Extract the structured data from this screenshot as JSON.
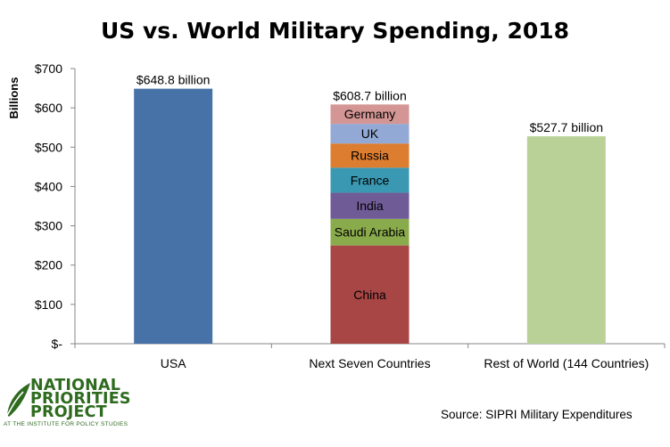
{
  "chart_data": {
    "type": "bar",
    "stacked": true,
    "title": "US vs. World Military Spending, 2018",
    "ylabel": "Billions",
    "ylim": [
      0,
      700
    ],
    "yticks": [
      0,
      100,
      200,
      300,
      400,
      500,
      600,
      700
    ],
    "ytick_labels": [
      "$-",
      "$100",
      "$200",
      "$300",
      "$400",
      "$500",
      "$600",
      "$700"
    ],
    "grid": false,
    "categories": [
      "USA",
      "Next Seven Countries",
      "Rest of World (144 Countries)"
    ],
    "bars": [
      {
        "category": "USA",
        "total_label": "$648.8 billion",
        "segments": [
          {
            "label": "",
            "value": 648.8,
            "color": "#4672a8"
          }
        ]
      },
      {
        "category": "Next Seven Countries",
        "total_label": "$608.7 billion",
        "segments": [
          {
            "label": "China",
            "value": 250,
            "color": "#a74645"
          },
          {
            "label": "Saudi Arabia",
            "value": 67.6,
            "color": "#8aab4b"
          },
          {
            "label": "India",
            "value": 66.5,
            "color": "#6f5b96"
          },
          {
            "label": "France",
            "value": 63.8,
            "color": "#3a98b2"
          },
          {
            "label": "Russia",
            "value": 61.4,
            "color": "#dd7d2f"
          },
          {
            "label": "UK",
            "value": 50,
            "color": "#93a9d5"
          },
          {
            "label": "Germany",
            "value": 49.4,
            "color": "#d49694"
          }
        ]
      },
      {
        "category": "Rest of World (144 Countries)",
        "total_label": "$527.7 billion",
        "segments": [
          {
            "label": "",
            "value": 527.7,
            "color": "#b9d197"
          }
        ]
      }
    ]
  },
  "source": "Source: SIPRI Military Expenditures",
  "logo": {
    "lines": [
      "NATIONAL",
      "PRIORITIES",
      "PROJECT"
    ],
    "subtitle": "AT THE INSTITUTE FOR POLICY STUDIES",
    "color": "#2e6b1f"
  }
}
